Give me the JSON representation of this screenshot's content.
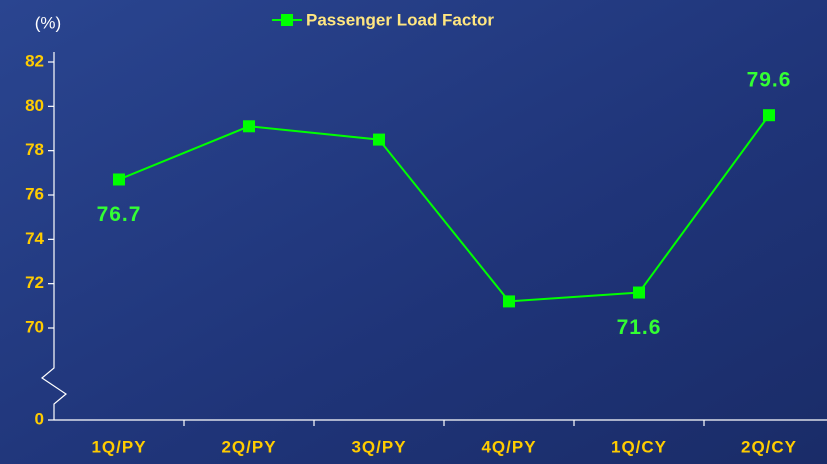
{
  "chart_data": {
    "type": "line",
    "y_axis_label": "(%)",
    "categories": [
      "1Q/PY",
      "2Q/PY",
      "3Q/PY",
      "4Q/PY",
      "1Q/CY",
      "2Q/CY"
    ],
    "series": [
      {
        "name": "Passenger Load Factor",
        "color": "#00ff00",
        "values": [
          76.7,
          79.1,
          78.5,
          71.2,
          71.6,
          79.6
        ],
        "value_labels": [
          "76.7",
          null,
          null,
          null,
          "71.6",
          "79.6"
        ]
      }
    ],
    "ylim": [
      70,
      82
    ],
    "yticks": [
      0,
      70,
      72,
      74,
      76,
      78,
      80,
      82
    ],
    "axis_break": true,
    "legend": "top"
  }
}
